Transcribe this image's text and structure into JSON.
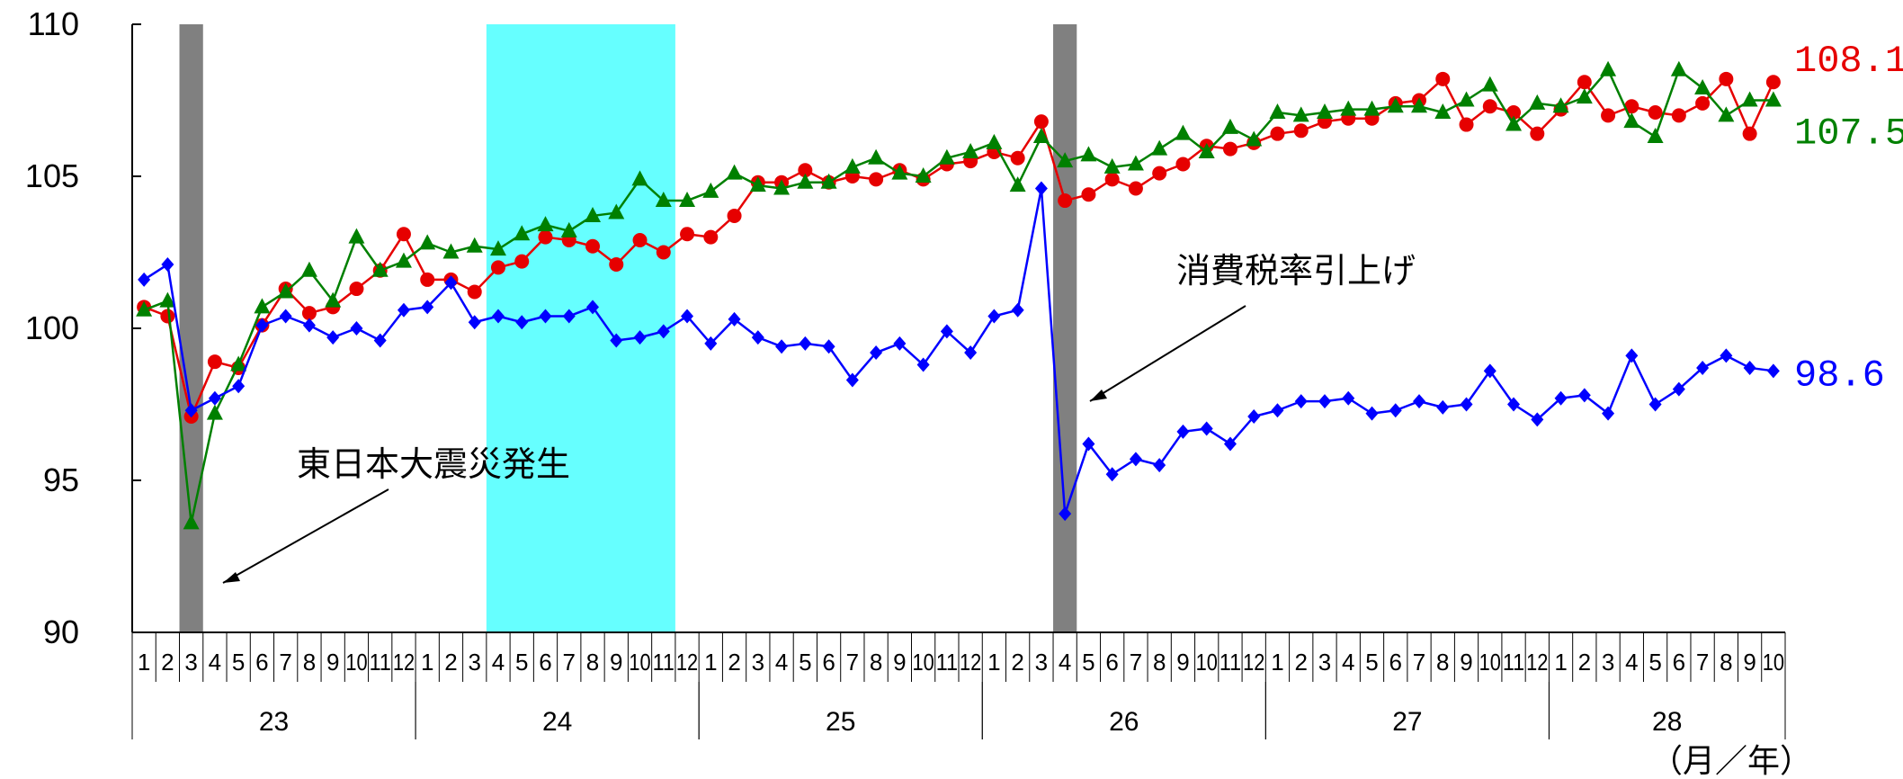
{
  "chart_data": {
    "type": "line",
    "ylim": [
      90,
      110
    ],
    "yticks": [
      90,
      95,
      100,
      105,
      110
    ],
    "unit_label": "（月／年）",
    "years": [
      {
        "label": "23",
        "start": 0,
        "end": 12
      },
      {
        "label": "24",
        "start": 12,
        "end": 24
      },
      {
        "label": "25",
        "start": 24,
        "end": 36
      },
      {
        "label": "26",
        "start": 36,
        "end": 48
      },
      {
        "label": "27",
        "start": 48,
        "end": 60
      },
      {
        "label": "28",
        "start": 60,
        "end": 70
      }
    ],
    "month_labels": [
      "1",
      "2",
      "3",
      "4",
      "5",
      "6",
      "7",
      "8",
      "9",
      "10",
      "11",
      "12",
      "1",
      "2",
      "3",
      "4",
      "5",
      "6",
      "7",
      "8",
      "9",
      "10",
      "11",
      "12",
      "1",
      "2",
      "3",
      "4",
      "5",
      "6",
      "7",
      "8",
      "9",
      "10",
      "11",
      "12",
      "1",
      "2",
      "3",
      "4",
      "5",
      "6",
      "7",
      "8",
      "9",
      "10",
      "11",
      "12",
      "1",
      "2",
      "3",
      "4",
      "5",
      "6",
      "7",
      "8",
      "9",
      "10",
      "11",
      "12",
      "1",
      "2",
      "3",
      "4",
      "5",
      "6",
      "7",
      "8",
      "9",
      "10"
    ],
    "shaded_bands": [
      {
        "start": 2,
        "end": 3,
        "color": "#808080"
      },
      {
        "start": 15,
        "end": 23,
        "color": "#66ffff"
      },
      {
        "start": 39,
        "end": 40,
        "color": "#808080"
      }
    ],
    "series": [
      {
        "color": "#e60000",
        "marker": "circle",
        "end_label": "108.1",
        "values": [
          100.7,
          100.4,
          97.1,
          98.9,
          98.7,
          100.1,
          101.3,
          100.5,
          100.7,
          101.3,
          101.9,
          103.1,
          101.6,
          101.6,
          101.2,
          102.0,
          102.2,
          103.0,
          102.9,
          102.7,
          102.1,
          102.9,
          102.5,
          103.1,
          103.0,
          103.7,
          104.8,
          104.8,
          105.2,
          104.8,
          105.0,
          104.9,
          105.2,
          104.9,
          105.4,
          105.5,
          105.8,
          105.6,
          106.8,
          104.2,
          104.4,
          104.9,
          104.6,
          105.1,
          105.4,
          106.0,
          105.9,
          106.1,
          106.4,
          106.5,
          106.8,
          106.9,
          106.9,
          107.4,
          107.5,
          108.2,
          106.7,
          107.3,
          107.1,
          106.4,
          107.2,
          108.1,
          107.0,
          107.3,
          107.1,
          107.0,
          107.4,
          108.2,
          106.4,
          108.1
        ]
      },
      {
        "color": "#008000",
        "marker": "triangle",
        "end_label": "107.5",
        "values": [
          100.6,
          100.9,
          93.6,
          97.2,
          98.8,
          100.7,
          101.2,
          101.9,
          100.9,
          103.0,
          101.9,
          102.2,
          102.8,
          102.5,
          102.7,
          102.6,
          103.1,
          103.4,
          103.2,
          103.7,
          103.8,
          104.9,
          104.2,
          104.2,
          104.5,
          105.1,
          104.7,
          104.6,
          104.8,
          104.8,
          105.3,
          105.6,
          105.1,
          105.0,
          105.6,
          105.8,
          106.1,
          104.7,
          106.3,
          105.5,
          105.7,
          105.3,
          105.4,
          105.9,
          106.4,
          105.8,
          106.6,
          106.2,
          107.1,
          107.0,
          107.1,
          107.2,
          107.2,
          107.3,
          107.3,
          107.1,
          107.5,
          108.0,
          106.7,
          107.4,
          107.3,
          107.6,
          108.5,
          106.8,
          106.3,
          108.5,
          107.9,
          107.0,
          107.5,
          107.5
        ]
      },
      {
        "color": "#0000ff",
        "marker": "diamond",
        "end_label": "98.6",
        "values": [
          101.6,
          102.1,
          97.3,
          97.7,
          98.1,
          100.1,
          100.4,
          100.1,
          99.7,
          100.0,
          99.6,
          100.6,
          100.7,
          101.5,
          100.2,
          100.4,
          100.2,
          100.4,
          100.4,
          100.7,
          99.6,
          99.7,
          99.9,
          100.4,
          99.5,
          100.3,
          99.7,
          99.4,
          99.5,
          99.4,
          98.3,
          99.2,
          99.5,
          98.8,
          99.9,
          99.2,
          100.4,
          100.6,
          104.6,
          93.9,
          96.2,
          95.2,
          95.7,
          95.5,
          96.6,
          96.7,
          96.2,
          97.1,
          97.3,
          97.6,
          97.6,
          97.7,
          97.2,
          97.3,
          97.6,
          97.4,
          97.5,
          98.6,
          97.5,
          97.0,
          97.7,
          97.8,
          97.2,
          99.1,
          97.5,
          98.0,
          98.7,
          99.1,
          98.7,
          98.6
        ]
      }
    ],
    "annotations": [
      {
        "text": "東日本大震災発生",
        "points_to_index": 2
      },
      {
        "text": "消費税率引上げ",
        "points_to_index": 39
      }
    ]
  }
}
